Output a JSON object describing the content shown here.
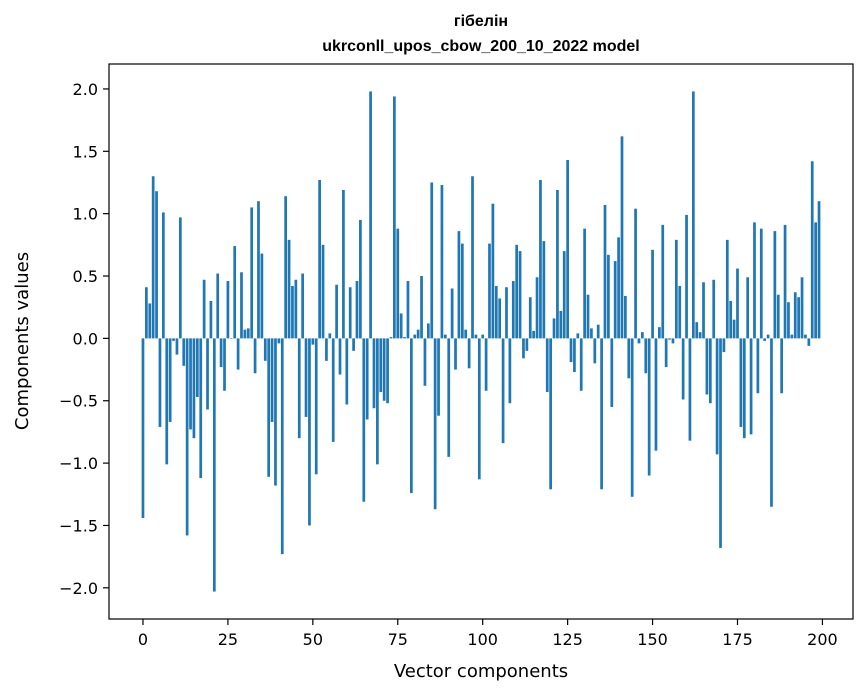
{
  "chart_data": {
    "type": "bar",
    "title": "гібелін",
    "subtitle": "ukrconll_upos_cbow_200_10_2022 model",
    "xlabel": "Vector components",
    "ylabel": "Components values",
    "xlim": [
      -10,
      209
    ],
    "ylim": [
      -2.25,
      2.2
    ],
    "x_ticks": [
      0,
      25,
      50,
      75,
      100,
      125,
      150,
      175,
      200
    ],
    "y_ticks": [
      -2.0,
      -1.5,
      -1.0,
      -0.5,
      0.0,
      0.5,
      1.0,
      1.5,
      2.0
    ],
    "x_tick_labels": [
      "0",
      "25",
      "50",
      "75",
      "100",
      "125",
      "150",
      "175",
      "200"
    ],
    "y_tick_labels": [
      "−2.0",
      "−1.5",
      "−1.0",
      "−0.5",
      "0.0",
      "0.5",
      "1.0",
      "1.5",
      "2.0"
    ],
    "bar_color": "#1f77b4",
    "grid": false,
    "values": [
      -1.44,
      0.41,
      0.28,
      1.3,
      1.18,
      -0.71,
      1.01,
      -1.01,
      -0.67,
      -0.02,
      -0.13,
      0.97,
      -0.22,
      -1.58,
      -0.73,
      -0.8,
      -0.47,
      -1.12,
      0.47,
      -0.57,
      0.3,
      -2.03,
      0.52,
      -0.23,
      -0.42,
      0.46,
      0.0,
      0.74,
      -0.25,
      0.53,
      0.07,
      0.08,
      1.05,
      -0.28,
      1.1,
      0.68,
      -0.18,
      -1.11,
      -0.67,
      -1.18,
      -0.04,
      -1.73,
      1.14,
      0.79,
      0.42,
      0.47,
      -0.8,
      0.52,
      -0.63,
      -1.5,
      -0.05,
      -1.09,
      1.27,
      0.75,
      -0.18,
      0.04,
      -0.83,
      0.43,
      -0.29,
      1.19,
      -0.53,
      0.41,
      -0.1,
      0.46,
      0.95,
      -1.31,
      -0.65,
      1.98,
      -0.56,
      -1.01,
      -0.43,
      -0.5,
      -0.52,
      0.01,
      1.94,
      0.88,
      0.2,
      0.01,
      0.46,
      -1.24,
      0.03,
      0.07,
      0.5,
      -0.38,
      0.12,
      1.25,
      -1.37,
      -0.62,
      1.23,
      0.03,
      -0.95,
      0.4,
      -0.25,
      0.86,
      0.76,
      0.07,
      -0.24,
      1.3,
      0.03,
      -1.13,
      0.03,
      -0.42,
      0.76,
      1.08,
      0.42,
      0.32,
      -0.84,
      0.41,
      -0.52,
      0.46,
      0.75,
      0.7,
      -0.16,
      -0.1,
      0.33,
      0.06,
      0.49,
      1.27,
      0.78,
      -0.43,
      -1.21,
      0.16,
      1.19,
      0.22,
      0.7,
      1.43,
      -0.19,
      -0.27,
      0.04,
      -0.42,
      0.88,
      0.35,
      0.08,
      -0.2,
      0.11,
      -1.21,
      1.07,
      0.67,
      -0.55,
      0.62,
      0.81,
      1.62,
      0.34,
      -0.32,
      -1.27,
      1.04,
      -0.04,
      0.05,
      -0.28,
      -1.1,
      0.71,
      -0.9,
      0.09,
      0.91,
      -0.23,
      -0.01,
      -0.04,
      0.79,
      0.42,
      -0.49,
      0.99,
      -0.82,
      1.98,
      0.13,
      0.05,
      0.45,
      -0.45,
      -0.52,
      0.47,
      -0.93,
      -1.68,
      -0.11,
      0.79,
      0.3,
      0.15,
      0.56,
      -0.71,
      -0.8,
      0.49,
      -0.77,
      0.93,
      -0.44,
      0.88,
      -0.02,
      0.03,
      -1.35,
      0.86,
      0.35,
      -0.44,
      0.91,
      0.29,
      0.03,
      0.37,
      0.33,
      0.49,
      0.03,
      -0.06,
      1.42,
      0.93,
      1.1
    ]
  }
}
